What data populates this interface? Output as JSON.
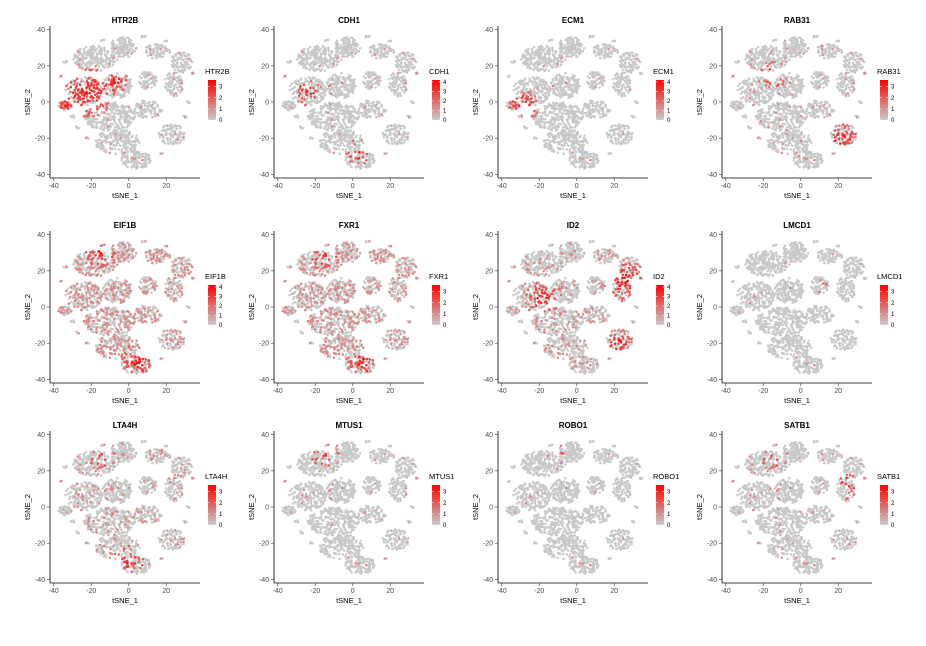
{
  "chart_data": [
    {
      "type": "scatter",
      "title": "HTR2B",
      "xlabel": "tSNE_1",
      "ylabel": "tSNE_2",
      "xlim": [
        -42,
        38
      ],
      "ylim": [
        -42,
        42
      ],
      "x_ticks": [
        -40,
        -20,
        0,
        20
      ],
      "y_ticks": [
        -40,
        -20,
        0,
        20,
        40
      ],
      "legend_title": "HTR2B",
      "legend_max": 3.6,
      "legend_ticks": [
        0,
        1,
        2,
        3
      ],
      "hotspots": [
        {
          "x": -22,
          "y": 5,
          "r": 14,
          "w": 0.8
        },
        {
          "x": -33,
          "y": -2,
          "r": 4,
          "w": 1.0
        },
        {
          "x": -8,
          "y": 12,
          "r": 8,
          "w": 0.6
        }
      ],
      "base_prob": 0.04
    },
    {
      "type": "scatter",
      "title": "CDH1",
      "xlabel": "tSNE_1",
      "ylabel": "tSNE_2",
      "xlim": [
        -42,
        38
      ],
      "ylim": [
        -42,
        42
      ],
      "x_ticks": [
        -40,
        -20,
        0,
        20
      ],
      "y_ticks": [
        -40,
        -20,
        0,
        20,
        40
      ],
      "legend_title": "CDH1",
      "legend_max": 4.2,
      "legend_ticks": [
        0,
        1,
        2,
        3,
        4
      ],
      "hotspots": [
        {
          "x": -24,
          "y": 5,
          "r": 8,
          "w": 0.35
        },
        {
          "x": 3,
          "y": -28,
          "r": 8,
          "w": 0.3
        }
      ],
      "base_prob": 0.03
    },
    {
      "type": "scatter",
      "title": "ECM1",
      "xlabel": "tSNE_1",
      "ylabel": "tSNE_2",
      "xlim": [
        -42,
        38
      ],
      "ylim": [
        -42,
        42
      ],
      "x_ticks": [
        -40,
        -20,
        0,
        20
      ],
      "y_ticks": [
        -40,
        -20,
        0,
        20,
        40
      ],
      "legend_title": "ECM1",
      "legend_max": 4.2,
      "legend_ticks": [
        0,
        1,
        2,
        3,
        4
      ],
      "hotspots": [
        {
          "x": -28,
          "y": -2,
          "r": 8,
          "w": 0.9
        }
      ],
      "base_prob": 0.015
    },
    {
      "type": "scatter",
      "title": "RAB31",
      "xlabel": "tSNE_1",
      "ylabel": "tSNE_2",
      "xlim": [
        -42,
        38
      ],
      "ylim": [
        -42,
        42
      ],
      "x_ticks": [
        -40,
        -20,
        0,
        20
      ],
      "y_ticks": [
        -40,
        -20,
        0,
        20,
        40
      ],
      "legend_title": "RAB31",
      "legend_max": 3.6,
      "legend_ticks": [
        0,
        1,
        2,
        3
      ],
      "hotspots": [
        {
          "x": 22,
          "y": -20,
          "r": 8,
          "w": 0.9
        },
        {
          "x": -15,
          "y": 15,
          "r": 8,
          "w": 0.3
        }
      ],
      "base_prob": 0.05
    },
    {
      "type": "scatter",
      "title": "EIF1B",
      "xlabel": "tSNE_1",
      "ylabel": "tSNE_2",
      "xlim": [
        -42,
        38
      ],
      "ylim": [
        -42,
        42
      ],
      "x_ticks": [
        -40,
        -20,
        0,
        20
      ],
      "y_ticks": [
        -40,
        -20,
        0,
        20,
        40
      ],
      "legend_title": "EIF1B",
      "legend_max": 4.2,
      "legend_ticks": [
        0,
        1,
        2,
        3,
        4
      ],
      "hotspots": [
        {
          "x": -15,
          "y": 30,
          "r": 9,
          "w": 0.8
        },
        {
          "x": 5,
          "y": -30,
          "r": 10,
          "w": 0.8
        }
      ],
      "base_prob": 0.35
    },
    {
      "type": "scatter",
      "title": "FXR1",
      "xlabel": "tSNE_1",
      "ylabel": "tSNE_2",
      "xlim": [
        -42,
        38
      ],
      "ylim": [
        -42,
        42
      ],
      "x_ticks": [
        -40,
        -20,
        0,
        20
      ],
      "y_ticks": [
        -40,
        -20,
        0,
        20,
        40
      ],
      "legend_title": "FXR1",
      "legend_max": 3.6,
      "legend_ticks": [
        0,
        1,
        2,
        3
      ],
      "hotspots": [
        {
          "x": 5,
          "y": -30,
          "r": 9,
          "w": 0.6
        },
        {
          "x": -15,
          "y": 28,
          "r": 8,
          "w": 0.5
        }
      ],
      "base_prob": 0.3
    },
    {
      "type": "scatter",
      "title": "ID2",
      "xlabel": "tSNE_1",
      "ylabel": "tSNE_2",
      "xlim": [
        -42,
        38
      ],
      "ylim": [
        -42,
        42
      ],
      "x_ticks": [
        -40,
        -20,
        0,
        20
      ],
      "y_ticks": [
        -40,
        -20,
        0,
        20,
        40
      ],
      "legend_title": "ID2",
      "legend_max": 4.2,
      "legend_ticks": [
        0,
        1,
        2,
        3,
        4
      ],
      "hotspots": [
        {
          "x": 25,
          "y": 15,
          "r": 12,
          "w": 0.8
        },
        {
          "x": 22,
          "y": -20,
          "r": 8,
          "w": 0.8
        },
        {
          "x": -18,
          "y": 5,
          "r": 10,
          "w": 0.5
        }
      ],
      "base_prob": 0.15
    },
    {
      "type": "scatter",
      "title": "LMCD1",
      "xlabel": "tSNE_1",
      "ylabel": "tSNE_2",
      "xlim": [
        -42,
        38
      ],
      "ylim": [
        -42,
        42
      ],
      "x_ticks": [
        -40,
        -20,
        0,
        20
      ],
      "y_ticks": [
        -40,
        -20,
        0,
        20,
        40
      ],
      "legend_title": "LMCD1",
      "legend_max": 3.6,
      "legend_ticks": [
        0,
        1,
        2,
        3
      ],
      "hotspots": [
        {
          "x": 15,
          "y": 12,
          "r": 8,
          "w": 0.1
        }
      ],
      "base_prob": 0.01
    },
    {
      "type": "scatter",
      "title": "LTA4H",
      "xlabel": "tSNE_1",
      "ylabel": "tSNE_2",
      "xlim": [
        -42,
        38
      ],
      "ylim": [
        -42,
        42
      ],
      "x_ticks": [
        -40,
        -20,
        0,
        20
      ],
      "y_ticks": [
        -40,
        -20,
        0,
        20,
        40
      ],
      "legend_title": "LTA4H",
      "legend_max": 3.6,
      "legend_ticks": [
        0,
        1,
        2,
        3
      ],
      "hotspots": [
        {
          "x": -15,
          "y": 28,
          "r": 8,
          "w": 0.3
        },
        {
          "x": 0,
          "y": -30,
          "r": 9,
          "w": 0.4
        }
      ],
      "base_prob": 0.12
    },
    {
      "type": "scatter",
      "title": "MTUS1",
      "xlabel": "tSNE_1",
      "ylabel": "tSNE_2",
      "xlim": [
        -42,
        38
      ],
      "ylim": [
        -42,
        42
      ],
      "x_ticks": [
        -40,
        -20,
        0,
        20
      ],
      "y_ticks": [
        -40,
        -20,
        0,
        20,
        40
      ],
      "legend_title": "MTUS1",
      "legend_max": 3.6,
      "legend_ticks": [
        0,
        1,
        2,
        3
      ],
      "hotspots": [
        {
          "x": -15,
          "y": 30,
          "r": 8,
          "w": 0.4
        }
      ],
      "base_prob": 0.025
    },
    {
      "type": "scatter",
      "title": "ROBO1",
      "xlabel": "tSNE_1",
      "ylabel": "tSNE_2",
      "xlim": [
        -42,
        38
      ],
      "ylim": [
        -42,
        42
      ],
      "x_ticks": [
        -40,
        -20,
        0,
        20
      ],
      "y_ticks": [
        -40,
        -20,
        0,
        20,
        40
      ],
      "legend_title": "ROBO1",
      "legend_max": 3.6,
      "legend_ticks": [
        0,
        1,
        2,
        3
      ],
      "hotspots": [
        {
          "x": -10,
          "y": 30,
          "r": 6,
          "w": 0.2
        }
      ],
      "base_prob": 0.012
    },
    {
      "type": "scatter",
      "title": "SATB1",
      "xlabel": "tSNE_1",
      "ylabel": "tSNE_2",
      "xlim": [
        -42,
        38
      ],
      "ylim": [
        -42,
        42
      ],
      "x_ticks": [
        -40,
        -20,
        0,
        20
      ],
      "y_ticks": [
        -40,
        -20,
        0,
        20,
        40
      ],
      "legend_title": "SATB1",
      "legend_max": 3.6,
      "legend_ticks": [
        0,
        1,
        2,
        3
      ],
      "hotspots": [
        {
          "x": 25,
          "y": 12,
          "r": 8,
          "w": 0.3
        },
        {
          "x": -15,
          "y": 28,
          "r": 8,
          "w": 0.25
        }
      ],
      "base_prob": 0.04
    }
  ],
  "colors": {
    "low": "#c8c8c8",
    "high": "#ff0000",
    "axis": "#4d4d4d"
  }
}
